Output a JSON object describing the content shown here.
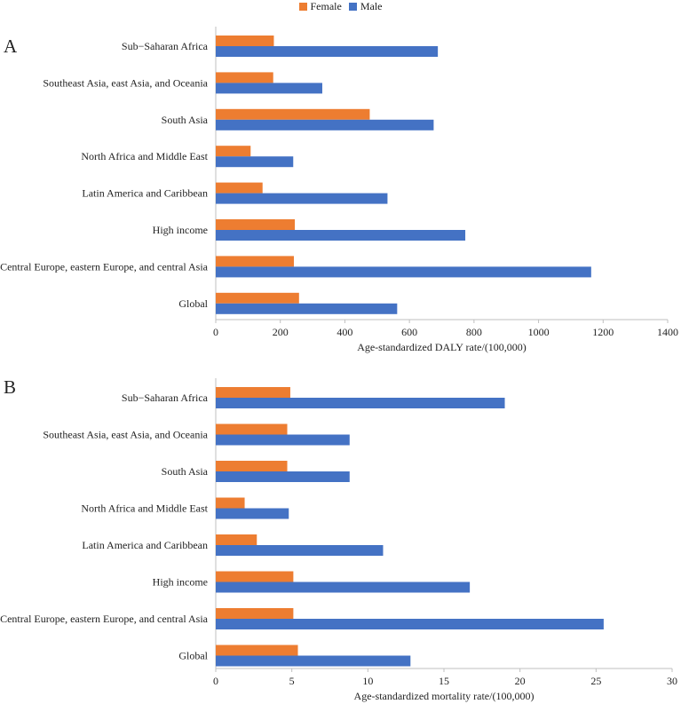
{
  "legend": {
    "female_label": "Female",
    "male_label": "Male"
  },
  "colors": {
    "female": "#ED7D31",
    "male": "#4472C4",
    "axis": "#BFBFBF",
    "text": "#222222"
  },
  "chart_data": [
    {
      "panel": "A",
      "type": "bar",
      "orientation": "horizontal",
      "categories": [
        "Sub−Saharan Africa",
        "Southeast Asia, east Asia, and Oceania",
        "South Asia",
        "North Africa and Middle East",
        "Latin America and Caribbean",
        "High income",
        "Central Europe, eastern Europe, and central Asia",
        "Global"
      ],
      "series": [
        {
          "name": "Female",
          "values": [
            180,
            178,
            477,
            108,
            145,
            245,
            242,
            258
          ]
        },
        {
          "name": "Male",
          "values": [
            688,
            330,
            675,
            240,
            532,
            773,
            1163,
            562
          ]
        }
      ],
      "xlabel": "Age-standardized DALY rate/(100,000)",
      "xlim": [
        0,
        1400
      ],
      "xticks": [
        0,
        200,
        400,
        600,
        800,
        1000,
        1200,
        1400
      ]
    },
    {
      "panel": "B",
      "type": "bar",
      "orientation": "horizontal",
      "categories": [
        "Sub−Saharan Africa",
        "Southeast Asia, east Asia, and Oceania",
        "South Asia",
        "North Africa and Middle East",
        "Latin America and Caribbean",
        "High income",
        "Central Europe, eastern Europe, and central Asia",
        "Global"
      ],
      "series": [
        {
          "name": "Female",
          "values": [
            4.9,
            4.7,
            4.7,
            1.9,
            2.7,
            5.1,
            5.1,
            5.4
          ]
        },
        {
          "name": "Male",
          "values": [
            19.0,
            8.8,
            8.8,
            4.8,
            11.0,
            16.7,
            25.5,
            12.8
          ]
        }
      ],
      "xlabel": "Age-standardized mortality rate/(100,000)",
      "xlim": [
        0,
        30
      ],
      "xticks": [
        0,
        5,
        10,
        15,
        20,
        25,
        30
      ]
    }
  ]
}
